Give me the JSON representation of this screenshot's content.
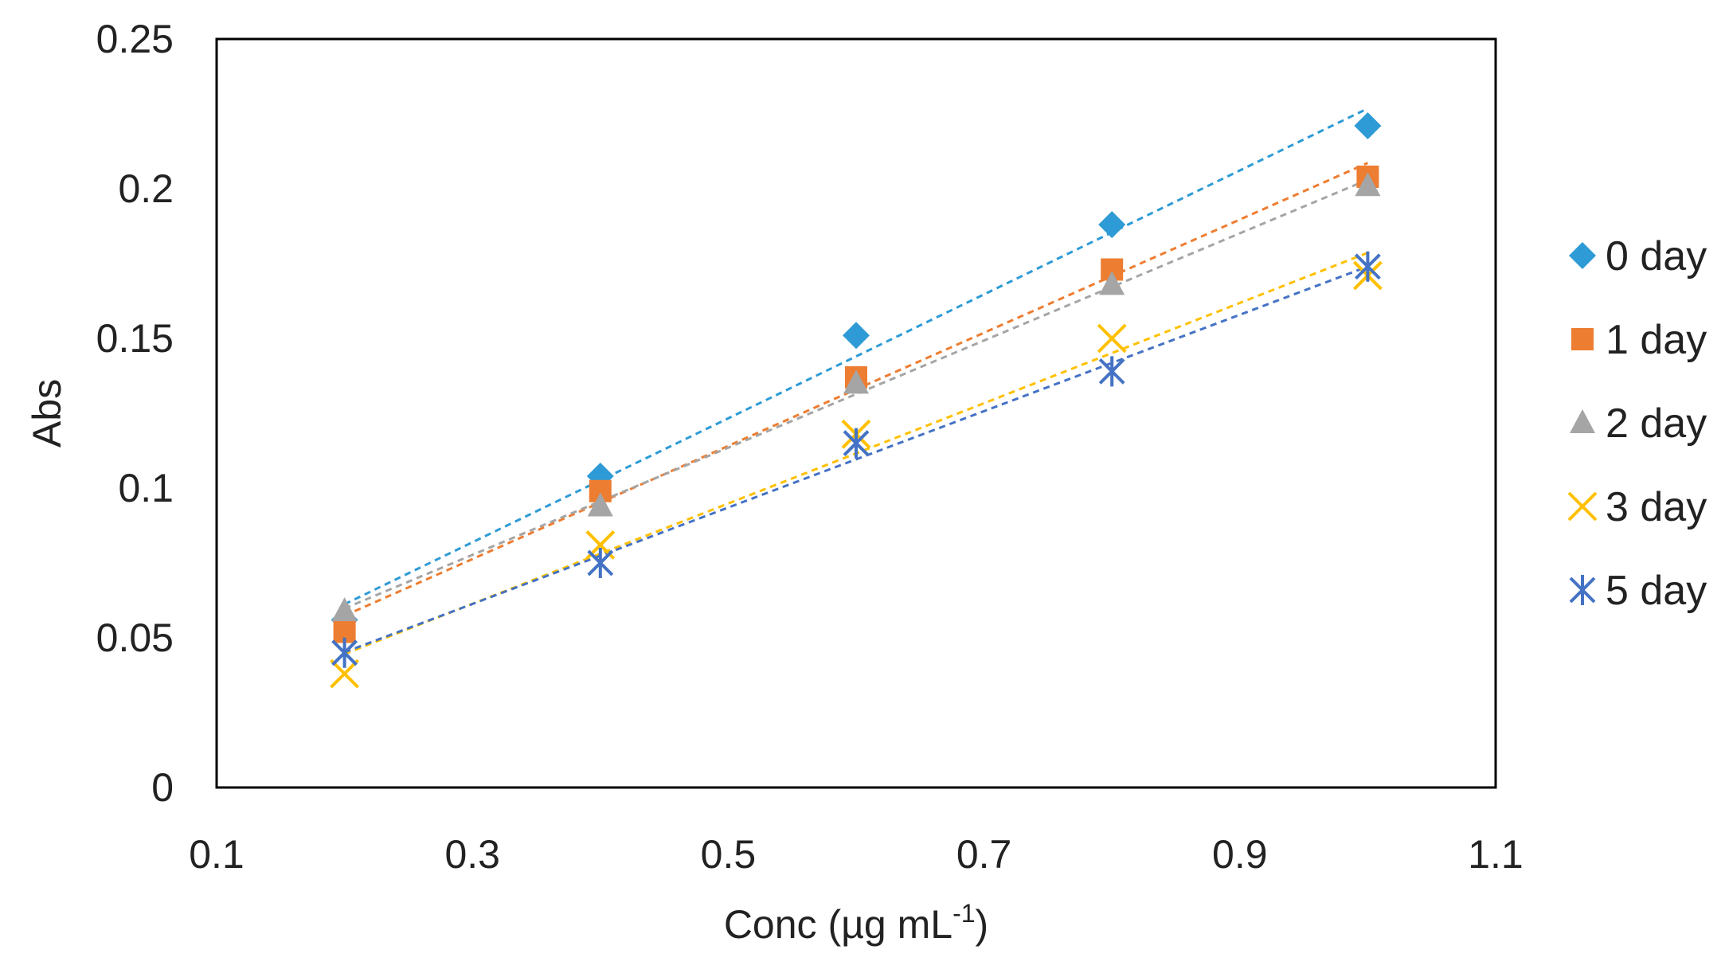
{
  "chart_data": {
    "type": "scatter",
    "title": "",
    "xlabel": "Conc (µg mL",
    "xlabel_superscript": "-1",
    "xlabel_suffix": ")",
    "ylabel": "Abs",
    "xlim": [
      0.1,
      1.1
    ],
    "ylim": [
      0,
      0.25
    ],
    "x_ticks": [
      "0.1",
      "0.3",
      "0.5",
      "0.7",
      "0.9",
      "1.1"
    ],
    "y_ticks": [
      "0",
      "0.05",
      "0.1",
      "0.15",
      "0.2",
      "0.25"
    ],
    "grid": false,
    "legend_position": "right",
    "trendlines": "linear, dashed",
    "x": [
      0.2,
      0.4,
      0.6,
      0.8,
      1.0
    ],
    "series": [
      {
        "name": "0 day",
        "marker": "diamond",
        "color": "#2e9bd6",
        "values": [
          0.056,
          0.104,
          0.151,
          0.188,
          0.221
        ]
      },
      {
        "name": "1 day",
        "marker": "square",
        "color": "#ed7d31",
        "values": [
          0.052,
          0.099,
          0.137,
          0.173,
          0.204
        ]
      },
      {
        "name": "2 day",
        "marker": "triangle",
        "color": "#a5a5a5",
        "values": [
          0.059,
          0.094,
          0.135,
          0.168,
          0.201
        ]
      },
      {
        "name": "3 day",
        "marker": "x",
        "color": "#ffc000",
        "values": [
          0.038,
          0.081,
          0.118,
          0.15,
          0.171
        ]
      },
      {
        "name": "5 day",
        "marker": "asterisk",
        "color": "#4472c4",
        "values": [
          0.045,
          0.075,
          0.115,
          0.139,
          0.174
        ]
      }
    ]
  }
}
